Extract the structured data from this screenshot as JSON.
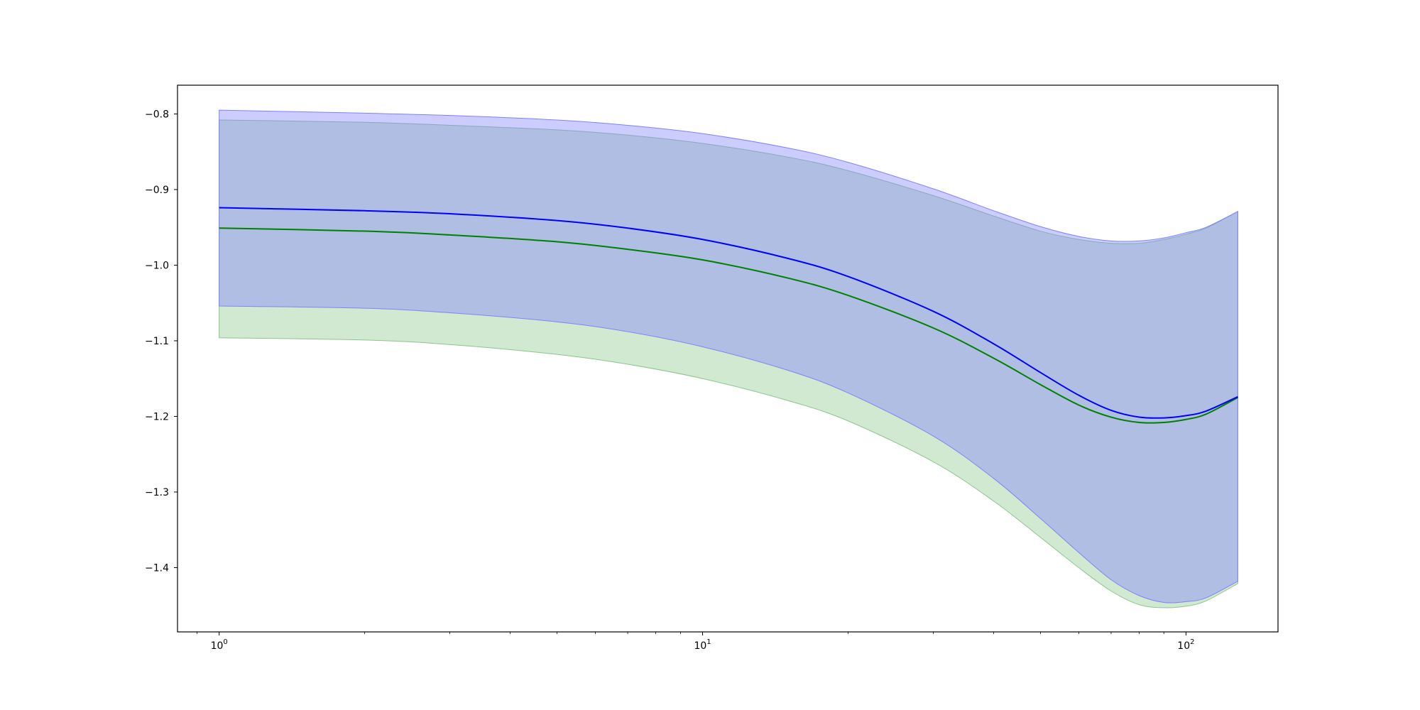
{
  "chart_data": {
    "type": "line",
    "title": "",
    "xlabel": "",
    "ylabel": "",
    "xscale": "log",
    "xlim": [
      0.82,
      155
    ],
    "ylim": [
      -1.485,
      -0.762
    ],
    "grid": false,
    "x_ticks": [
      {
        "base": "10",
        "exp": "0",
        "value": 1
      },
      {
        "base": "10",
        "exp": "1",
        "value": 10
      },
      {
        "base": "10",
        "exp": "2",
        "value": 100
      }
    ],
    "y_ticks": [
      {
        "label": "−0.8",
        "value": -0.8
      },
      {
        "label": "−0.9",
        "value": -0.9
      },
      {
        "label": "−1.0",
        "value": -1.0
      },
      {
        "label": "−1.1",
        "value": -1.1
      },
      {
        "label": "−1.2",
        "value": -1.2
      },
      {
        "label": "−1.3",
        "value": -1.3
      },
      {
        "label": "−1.4",
        "value": -1.4
      }
    ],
    "x": [
      1,
      2,
      3,
      5,
      7,
      10,
      15,
      20,
      30,
      40,
      50,
      60,
      70,
      80,
      90,
      100,
      110,
      128
    ],
    "series": [
      {
        "color": "#0000ff",
        "band_color": "#8080ff",
        "mean": [
          -0.924,
          -0.928,
          -0.932,
          -0.941,
          -0.951,
          -0.966,
          -0.991,
          -1.015,
          -1.061,
          -1.104,
          -1.142,
          -1.172,
          -1.192,
          -1.201,
          -1.202,
          -1.199,
          -1.193,
          -1.174
        ],
        "upper": [
          -0.795,
          -0.799,
          -0.802,
          -0.808,
          -0.815,
          -0.826,
          -0.845,
          -0.864,
          -0.899,
          -0.928,
          -0.949,
          -0.962,
          -0.968,
          -0.968,
          -0.964,
          -0.957,
          -0.95,
          -0.929
        ],
        "lower": [
          -1.054,
          -1.057,
          -1.063,
          -1.075,
          -1.088,
          -1.108,
          -1.139,
          -1.169,
          -1.226,
          -1.282,
          -1.335,
          -1.38,
          -1.416,
          -1.437,
          -1.446,
          -1.445,
          -1.44,
          -1.418
        ]
      },
      {
        "color": "#008000",
        "band_color": "#8cc68c",
        "mean": [
          -0.951,
          -0.955,
          -0.96,
          -0.969,
          -0.979,
          -0.993,
          -1.017,
          -1.04,
          -1.083,
          -1.123,
          -1.158,
          -1.185,
          -1.201,
          -1.208,
          -1.208,
          -1.204,
          -1.197,
          -1.175
        ],
        "upper": [
          -0.808,
          -0.811,
          -0.815,
          -0.821,
          -0.828,
          -0.839,
          -0.857,
          -0.875,
          -0.908,
          -0.935,
          -0.955,
          -0.966,
          -0.971,
          -0.971,
          -0.966,
          -0.959,
          -0.951,
          -0.929
        ],
        "lower": [
          -1.096,
          -1.099,
          -1.105,
          -1.118,
          -1.131,
          -1.15,
          -1.179,
          -1.206,
          -1.26,
          -1.312,
          -1.36,
          -1.4,
          -1.431,
          -1.449,
          -1.453,
          -1.451,
          -1.444,
          -1.421
        ]
      }
    ]
  }
}
